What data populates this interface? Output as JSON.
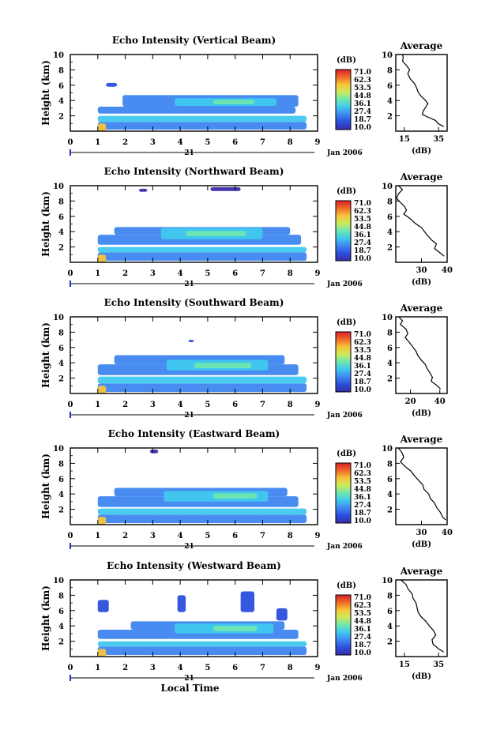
{
  "figure": {
    "xlabel": "Local Time",
    "date_day": "21",
    "date_month": "Jan 2006",
    "colorbar_unit": "(dB)",
    "colorbar_ticks": [
      "71.0",
      "62.3",
      "53.5",
      "44.8",
      "36.1",
      "27.4",
      "18.7",
      "10.0"
    ],
    "colorscale": [
      "#3a2ca8",
      "#2a4fdc",
      "#3f86f0",
      "#40c8ee",
      "#6fe6b0",
      "#cbea5c",
      "#f7c43a",
      "#f06a28",
      "#d8202a"
    ],
    "profile_title": "Average",
    "profile_xlabel": "(dB)"
  },
  "chart_data": [
    {
      "type": "heatmap",
      "title": "Echo Intensity (Vertical Beam)",
      "ylabel": "Height (km)",
      "xlabel": "Local Time",
      "x_ticks": [
        "0",
        "1",
        "2",
        "3",
        "4",
        "5",
        "6",
        "7",
        "8",
        "9"
      ],
      "y_ticks": [
        "2",
        "4",
        "6",
        "8",
        "10"
      ],
      "xlim": [
        0,
        9
      ],
      "ylim": [
        0,
        10
      ],
      "zlim": [
        10.0,
        71.0
      ],
      "layers": [
        {
          "x0": 1.0,
          "x1": 8.6,
          "y0": 0.2,
          "y1": 1.2,
          "level": 0.25
        },
        {
          "x0": 1.0,
          "x1": 8.6,
          "y0": 1.2,
          "y1": 2.0,
          "level": 0.38
        },
        {
          "x0": 1.0,
          "x1": 8.2,
          "y0": 2.3,
          "y1": 3.2,
          "level": 0.22
        },
        {
          "x0": 1.9,
          "x1": 8.3,
          "y0": 3.2,
          "y1": 4.7,
          "level": 0.2
        },
        {
          "x0": 3.8,
          "x1": 7.5,
          "y0": 3.3,
          "y1": 4.3,
          "level": 0.42
        },
        {
          "x0": 5.2,
          "x1": 6.7,
          "y0": 3.5,
          "y1": 4.1,
          "level": 0.5
        },
        {
          "x0": 1.0,
          "x1": 1.3,
          "y0": 0.0,
          "y1": 1.0,
          "level": 0.7
        },
        {
          "x0": 1.3,
          "x1": 1.7,
          "y0": 5.8,
          "y1": 6.3,
          "level": 0.12
        }
      ],
      "profile": {
        "xlim": [
          10,
          40
        ],
        "x_ticks": [
          "15",
          "35"
        ],
        "x_tick_values": [
          15,
          35
        ],
        "x": [
          14.0,
          14.3,
          14.0,
          16.2,
          18.1,
          17.0,
          18.5,
          21.0,
          22.3,
          23.0,
          24.6,
          27.0,
          28.8,
          27.4,
          26.2,
          25.4,
          29.0,
          33.2,
          34.6,
          38.0
        ],
        "y": [
          10.0,
          9.6,
          9.1,
          8.6,
          8.0,
          7.5,
          6.8,
          6.2,
          5.6,
          5.1,
          4.6,
          4.1,
          3.6,
          3.1,
          2.7,
          2.2,
          1.8,
          1.4,
          1.0,
          0.6
        ]
      }
    },
    {
      "type": "heatmap",
      "title": "Echo Intensity (Northward Beam)",
      "ylabel": "Height (km)",
      "xlabel": "Local Time",
      "x_ticks": [
        "0",
        "1",
        "2",
        "3",
        "4",
        "5",
        "6",
        "7",
        "8",
        "9"
      ],
      "y_ticks": [
        "2",
        "4",
        "6",
        "8",
        "10"
      ],
      "xlim": [
        0,
        9
      ],
      "ylim": [
        0,
        10
      ],
      "zlim": [
        10.0,
        71.0
      ],
      "layers": [
        {
          "x0": 1.0,
          "x1": 8.6,
          "y0": 0.2,
          "y1": 1.3,
          "level": 0.24
        },
        {
          "x0": 1.0,
          "x1": 8.6,
          "y0": 1.3,
          "y1": 2.0,
          "level": 0.36
        },
        {
          "x0": 1.0,
          "x1": 8.4,
          "y0": 2.3,
          "y1": 3.6,
          "level": 0.22
        },
        {
          "x0": 1.6,
          "x1": 8.0,
          "y0": 3.6,
          "y1": 4.6,
          "level": 0.22
        },
        {
          "x0": 3.3,
          "x1": 7.0,
          "y0": 3.0,
          "y1": 4.5,
          "level": 0.42
        },
        {
          "x0": 4.2,
          "x1": 6.4,
          "y0": 3.4,
          "y1": 4.1,
          "level": 0.5
        },
        {
          "x0": 1.0,
          "x1": 1.3,
          "y0": 0.0,
          "y1": 1.0,
          "level": 0.7
        },
        {
          "x0": 2.5,
          "x1": 2.8,
          "y0": 9.2,
          "y1": 9.6,
          "level": 0.05
        },
        {
          "x0": 5.1,
          "x1": 6.2,
          "y0": 9.3,
          "y1": 9.8,
          "level": 0.05
        }
      ],
      "profile": {
        "xlim": [
          20,
          40
        ],
        "x_ticks": [
          "30",
          "40"
        ],
        "x_tick_values": [
          30,
          40
        ],
        "x": [
          21.0,
          22.6,
          21.2,
          20.3,
          21.5,
          23.4,
          24.2,
          23.1,
          25.6,
          27.5,
          30.1,
          31.2,
          32.4,
          34.0,
          35.8,
          35.1,
          37.0,
          38.8
        ],
        "y": [
          10.0,
          9.5,
          9.0,
          8.4,
          7.9,
          7.3,
          6.8,
          6.3,
          5.7,
          5.1,
          4.5,
          4.0,
          3.5,
          2.9,
          2.4,
          1.8,
          1.3,
          0.8
        ]
      }
    },
    {
      "type": "heatmap",
      "title": "Echo Intensity (Southward Beam)",
      "ylabel": "Height (km)",
      "xlabel": "Local Time",
      "x_ticks": [
        "0",
        "1",
        "2",
        "3",
        "4",
        "5",
        "6",
        "7",
        "8",
        "9"
      ],
      "y_ticks": [
        "2",
        "4",
        "6",
        "8",
        "10"
      ],
      "xlim": [
        0,
        9
      ],
      "ylim": [
        0,
        10
      ],
      "zlim": [
        10.0,
        71.0
      ],
      "layers": [
        {
          "x0": 1.0,
          "x1": 8.6,
          "y0": 0.2,
          "y1": 1.3,
          "level": 0.25
        },
        {
          "x0": 1.0,
          "x1": 8.6,
          "y0": 1.3,
          "y1": 2.2,
          "level": 0.37
        },
        {
          "x0": 1.0,
          "x1": 8.3,
          "y0": 2.4,
          "y1": 3.8,
          "level": 0.22
        },
        {
          "x0": 1.6,
          "x1": 7.8,
          "y0": 3.8,
          "y1": 5.0,
          "level": 0.2
        },
        {
          "x0": 3.5,
          "x1": 7.2,
          "y0": 3.0,
          "y1": 4.4,
          "level": 0.42
        },
        {
          "x0": 4.5,
          "x1": 6.6,
          "y0": 3.3,
          "y1": 4.0,
          "level": 0.5
        },
        {
          "x0": 1.0,
          "x1": 1.3,
          "y0": 0.0,
          "y1": 1.0,
          "level": 0.72
        },
        {
          "x0": 4.3,
          "x1": 4.5,
          "y0": 6.7,
          "y1": 7.0,
          "level": 0.1
        }
      ],
      "profile": {
        "xlim": [
          10,
          45
        ],
        "x_ticks": [
          "20",
          "40"
        ],
        "x_tick_values": [
          20,
          40
        ],
        "x": [
          12.0,
          14.6,
          13.1,
          17.0,
          18.2,
          16.4,
          19.1,
          21.5,
          23.8,
          25.2,
          27.6,
          30.1,
          31.5,
          33.2,
          35.0,
          34.1,
          37.6,
          40.5
        ],
        "y": [
          10.0,
          9.5,
          9.0,
          8.4,
          7.8,
          7.3,
          6.7,
          6.1,
          5.5,
          4.9,
          4.3,
          3.8,
          3.2,
          2.7,
          2.1,
          1.6,
          1.1,
          0.6
        ]
      }
    },
    {
      "type": "heatmap",
      "title": "Echo Intensity (Eastward Beam)",
      "ylabel": "Height (km)",
      "xlabel": "Local Time",
      "x_ticks": [
        "0",
        "1",
        "2",
        "3",
        "4",
        "5",
        "6",
        "7",
        "8",
        "9"
      ],
      "y_ticks": [
        "2",
        "4",
        "6",
        "8",
        "10"
      ],
      "xlim": [
        0,
        9
      ],
      "ylim": [
        0,
        10
      ],
      "zlim": [
        10.0,
        71.0
      ],
      "layers": [
        {
          "x0": 1.0,
          "x1": 8.6,
          "y0": 0.2,
          "y1": 1.3,
          "level": 0.25
        },
        {
          "x0": 1.0,
          "x1": 8.6,
          "y0": 1.3,
          "y1": 2.1,
          "level": 0.37
        },
        {
          "x0": 1.0,
          "x1": 8.3,
          "y0": 2.3,
          "y1": 3.7,
          "level": 0.22
        },
        {
          "x0": 1.6,
          "x1": 7.9,
          "y0": 3.7,
          "y1": 4.8,
          "level": 0.2
        },
        {
          "x0": 3.4,
          "x1": 7.2,
          "y0": 3.0,
          "y1": 4.4,
          "level": 0.42
        },
        {
          "x0": 5.2,
          "x1": 6.8,
          "y0": 3.4,
          "y1": 4.1,
          "level": 0.5
        },
        {
          "x0": 1.0,
          "x1": 1.3,
          "y0": 0.0,
          "y1": 1.0,
          "level": 0.72
        },
        {
          "x0": 2.9,
          "x1": 3.2,
          "y0": 9.3,
          "y1": 9.8,
          "level": 0.03
        }
      ],
      "profile": {
        "xlim": [
          20,
          40
        ],
        "x_ticks": [
          "30",
          "40"
        ],
        "x_tick_values": [
          30,
          40
        ],
        "x": [
          21.0,
          22.4,
          23.1,
          21.8,
          23.6,
          25.8,
          27.2,
          28.8,
          30.5,
          31.0,
          32.8,
          33.5,
          35.1,
          36.0,
          37.4,
          38.2,
          39.5
        ],
        "y": [
          10.0,
          9.4,
          8.8,
          8.2,
          7.6,
          7.0,
          6.4,
          5.8,
          5.2,
          4.6,
          4.0,
          3.4,
          2.8,
          2.2,
          1.6,
          1.0,
          0.6
        ]
      }
    },
    {
      "type": "heatmap",
      "title": "Echo Intensity (Westward Beam)",
      "ylabel": "Height (km)",
      "xlabel": "Local Time",
      "x_ticks": [
        "0",
        "1",
        "2",
        "3",
        "4",
        "5",
        "6",
        "7",
        "8",
        "9"
      ],
      "y_ticks": [
        "2",
        "4",
        "6",
        "8",
        "10"
      ],
      "xlim": [
        0,
        9
      ],
      "ylim": [
        0,
        10
      ],
      "zlim": [
        10.0,
        71.0
      ],
      "layers": [
        {
          "x0": 1.0,
          "x1": 8.6,
          "y0": 0.2,
          "y1": 1.3,
          "level": 0.24
        },
        {
          "x0": 1.0,
          "x1": 8.6,
          "y0": 1.3,
          "y1": 2.0,
          "level": 0.36
        },
        {
          "x0": 1.0,
          "x1": 8.3,
          "y0": 2.3,
          "y1": 3.5,
          "level": 0.22
        },
        {
          "x0": 2.2,
          "x1": 7.8,
          "y0": 3.5,
          "y1": 4.6,
          "level": 0.2
        },
        {
          "x0": 3.8,
          "x1": 7.4,
          "y0": 3.0,
          "y1": 4.3,
          "level": 0.42
        },
        {
          "x0": 5.2,
          "x1": 6.8,
          "y0": 3.3,
          "y1": 4.0,
          "level": 0.5
        },
        {
          "x0": 1.0,
          "x1": 1.3,
          "y0": 0.0,
          "y1": 1.0,
          "level": 0.72
        },
        {
          "x0": 1.0,
          "x1": 1.4,
          "y0": 5.8,
          "y1": 7.4,
          "level": 0.12
        },
        {
          "x0": 3.9,
          "x1": 4.2,
          "y0": 5.8,
          "y1": 8.0,
          "level": 0.08
        },
        {
          "x0": 6.2,
          "x1": 6.7,
          "y0": 5.8,
          "y1": 8.5,
          "level": 0.1
        },
        {
          "x0": 7.5,
          "x1": 7.9,
          "y0": 4.7,
          "y1": 6.3,
          "level": 0.14
        }
      ],
      "profile": {
        "xlim": [
          10,
          40
        ],
        "x_ticks": [
          "15",
          "35"
        ],
        "x_tick_values": [
          15,
          35
        ],
        "x": [
          13.0,
          16.0,
          17.2,
          19.5,
          20.1,
          21.8,
          22.4,
          23.0,
          24.8,
          27.6,
          29.6,
          32.0,
          33.4,
          31.2,
          31.8,
          35.1,
          38.0
        ],
        "y": [
          10.0,
          9.4,
          8.8,
          8.2,
          7.6,
          7.0,
          6.4,
          5.8,
          5.2,
          4.6,
          4.0,
          3.4,
          2.8,
          2.2,
          1.6,
          1.0,
          0.6
        ]
      }
    }
  ]
}
